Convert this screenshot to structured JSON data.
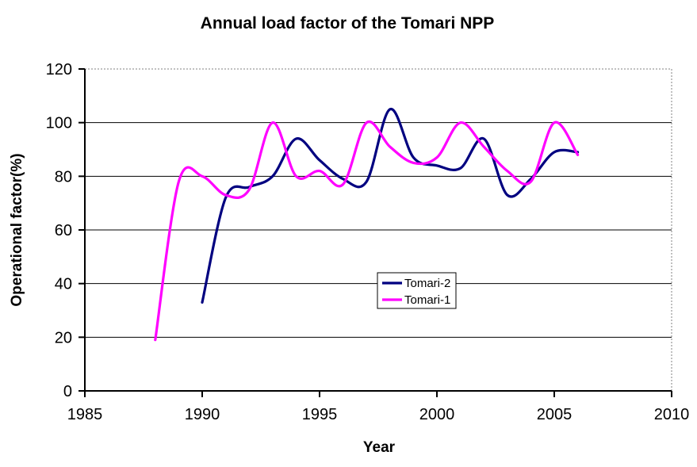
{
  "chart_data": {
    "type": "line",
    "title": "Annual load factor of the Tomari NPP",
    "xlabel": "Year",
    "ylabel": "Operational factor(%)",
    "xlim": [
      1985,
      2010
    ],
    "ylim": [
      0,
      120
    ],
    "x_ticks": [
      1985,
      1990,
      1995,
      2000,
      2005,
      2010
    ],
    "y_ticks": [
      0,
      20,
      40,
      60,
      80,
      100,
      120
    ],
    "grid": "horizontal-solid-black, top-and-right-border-dotted-gray",
    "legend_position": "inside-center-right",
    "smoothed_lines": true,
    "axis_color": "#000000",
    "gridline_color": "#000000",
    "border_dotted_color": "#808080",
    "background_color": "#ffffff",
    "series": [
      {
        "name": "Tomari-2",
        "color": "#000080",
        "x": [
          1990,
          1991,
          1992,
          1993,
          1994,
          1995,
          1996,
          1997,
          1998,
          1999,
          2000,
          2001,
          2002,
          2003,
          2004,
          2005,
          2006
        ],
        "values": [
          33,
          72,
          76,
          80,
          94,
          86,
          79,
          78,
          105,
          87,
          84,
          83,
          94,
          73,
          79,
          89,
          89
        ]
      },
      {
        "name": "Tomari-1",
        "color": "#FF00FF",
        "x": [
          1988,
          1989,
          1990,
          1991,
          1992,
          1993,
          1994,
          1995,
          1996,
          1997,
          1998,
          1999,
          2000,
          2001,
          2002,
          2003,
          2004,
          2005,
          2006
        ],
        "values": [
          19,
          78,
          80,
          73,
          75,
          100,
          80,
          82,
          77,
          100,
          91,
          85,
          87,
          100,
          91,
          82,
          78,
          100,
          88
        ]
      }
    ]
  }
}
